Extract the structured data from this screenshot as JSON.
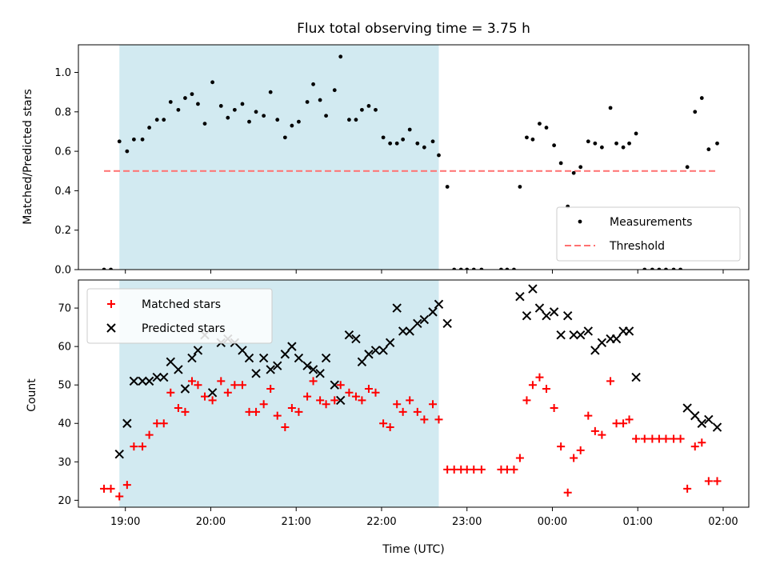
{
  "chart_data": [
    {
      "type": "scatter",
      "title": "Flux total observing time = 3.75 h",
      "xlabel": "",
      "ylabel": "Matched/Predicted stars",
      "ylim": [
        0,
        1.14
      ],
      "yticks": [
        "0.0",
        "0.2",
        "0.4",
        "0.6",
        "0.8",
        "1.0"
      ],
      "ytick_values": [
        0,
        0.2,
        0.4,
        0.6,
        0.8,
        1.0
      ],
      "legend_position": "bottom-right",
      "highlight_span": {
        "start_h": 18.93,
        "end_h": 22.67,
        "color": "#add8e6"
      },
      "threshold": {
        "name": "Threshold",
        "value": 0.5,
        "x_start_h": 18.75,
        "x_end_h": 25.93,
        "color": "#ff7070"
      },
      "series": [
        {
          "name": "Measurements",
          "color": "#000000",
          "marker": "dot",
          "points": [
            [
              18.75,
              0.0
            ],
            [
              18.83,
              0.0
            ],
            [
              18.93,
              0.65
            ],
            [
              19.02,
              0.6
            ],
            [
              19.1,
              0.66
            ],
            [
              19.2,
              0.66
            ],
            [
              19.28,
              0.72
            ],
            [
              19.37,
              0.76
            ],
            [
              19.45,
              0.76
            ],
            [
              19.53,
              0.85
            ],
            [
              19.62,
              0.81
            ],
            [
              19.7,
              0.87
            ],
            [
              19.78,
              0.89
            ],
            [
              19.85,
              0.84
            ],
            [
              19.93,
              0.74
            ],
            [
              20.02,
              0.95
            ],
            [
              20.12,
              0.83
            ],
            [
              20.2,
              0.77
            ],
            [
              20.28,
              0.81
            ],
            [
              20.37,
              0.84
            ],
            [
              20.45,
              0.75
            ],
            [
              20.53,
              0.8
            ],
            [
              20.62,
              0.78
            ],
            [
              20.7,
              0.9
            ],
            [
              20.78,
              0.76
            ],
            [
              20.87,
              0.67
            ],
            [
              20.95,
              0.73
            ],
            [
              21.03,
              0.75
            ],
            [
              21.13,
              0.85
            ],
            [
              21.2,
              0.94
            ],
            [
              21.28,
              0.86
            ],
            [
              21.35,
              0.78
            ],
            [
              21.45,
              0.91
            ],
            [
              21.52,
              1.08
            ],
            [
              21.62,
              0.76
            ],
            [
              21.7,
              0.76
            ],
            [
              21.77,
              0.81
            ],
            [
              21.85,
              0.83
            ],
            [
              21.93,
              0.81
            ],
            [
              22.02,
              0.67
            ],
            [
              22.1,
              0.64
            ],
            [
              22.18,
              0.64
            ],
            [
              22.25,
              0.66
            ],
            [
              22.33,
              0.71
            ],
            [
              22.42,
              0.64
            ],
            [
              22.5,
              0.62
            ],
            [
              22.6,
              0.65
            ],
            [
              22.67,
              0.58
            ],
            [
              22.77,
              0.42
            ],
            [
              22.85,
              0.0
            ],
            [
              22.93,
              0.0
            ],
            [
              23.0,
              0.0
            ],
            [
              23.08,
              0.0
            ],
            [
              23.17,
              0.0
            ],
            [
              23.4,
              0.0
            ],
            [
              23.47,
              0.0
            ],
            [
              23.55,
              0.0
            ],
            [
              23.62,
              0.42
            ],
            [
              23.7,
              0.67
            ],
            [
              23.77,
              0.66
            ],
            [
              23.85,
              0.74
            ],
            [
              23.93,
              0.72
            ],
            [
              24.02,
              0.63
            ],
            [
              24.1,
              0.54
            ],
            [
              24.18,
              0.32
            ],
            [
              24.25,
              0.49
            ],
            [
              24.33,
              0.52
            ],
            [
              24.42,
              0.65
            ],
            [
              24.5,
              0.64
            ],
            [
              24.58,
              0.62
            ],
            [
              24.68,
              0.82
            ],
            [
              24.75,
              0.64
            ],
            [
              24.83,
              0.62
            ],
            [
              24.9,
              0.64
            ],
            [
              24.98,
              0.69
            ],
            [
              25.08,
              0.0
            ],
            [
              25.17,
              0.0
            ],
            [
              25.25,
              0.0
            ],
            [
              25.33,
              0.0
            ],
            [
              25.42,
              0.0
            ],
            [
              25.5,
              0.0
            ],
            [
              25.58,
              0.52
            ],
            [
              25.67,
              0.8
            ],
            [
              25.75,
              0.87
            ],
            [
              25.83,
              0.61
            ],
            [
              25.93,
              0.64
            ]
          ]
        }
      ]
    },
    {
      "type": "scatter",
      "title": "",
      "xlabel": "Time (UTC)",
      "ylabel": "Count",
      "ylim": [
        18.2,
        77.3
      ],
      "yticks": [
        "20",
        "30",
        "40",
        "50",
        "60",
        "70"
      ],
      "ytick_values": [
        20,
        30,
        40,
        50,
        60,
        70
      ],
      "xlim_h": [
        18.45,
        26.3
      ],
      "xticks": [
        "19:00",
        "20:00",
        "21:00",
        "22:00",
        "23:00",
        "00:00",
        "01:00",
        "02:00"
      ],
      "xtick_values_h": [
        19,
        20,
        21,
        22,
        23,
        24,
        25,
        26
      ],
      "legend_position": "top-left",
      "highlight_span": {
        "start_h": 18.93,
        "end_h": 22.67,
        "color": "#add8e6"
      },
      "series": [
        {
          "name": "Matched stars",
          "color": "#ff0000",
          "marker": "plus",
          "points": [
            [
              18.75,
              23
            ],
            [
              18.83,
              23
            ],
            [
              18.93,
              21
            ],
            [
              19.02,
              24
            ],
            [
              19.1,
              34
            ],
            [
              19.2,
              34
            ],
            [
              19.28,
              37
            ],
            [
              19.37,
              40
            ],
            [
              19.45,
              40
            ],
            [
              19.53,
              48
            ],
            [
              19.62,
              44
            ],
            [
              19.7,
              43
            ],
            [
              19.78,
              51
            ],
            [
              19.85,
              50
            ],
            [
              19.93,
              47
            ],
            [
              20.02,
              46
            ],
            [
              20.12,
              51
            ],
            [
              20.2,
              48
            ],
            [
              20.28,
              50
            ],
            [
              20.37,
              50
            ],
            [
              20.45,
              43
            ],
            [
              20.53,
              43
            ],
            [
              20.62,
              45
            ],
            [
              20.7,
              49
            ],
            [
              20.78,
              42
            ],
            [
              20.87,
              39
            ],
            [
              20.95,
              44
            ],
            [
              21.03,
              43
            ],
            [
              21.13,
              47
            ],
            [
              21.2,
              51
            ],
            [
              21.28,
              46
            ],
            [
              21.35,
              45
            ],
            [
              21.45,
              46
            ],
            [
              21.52,
              50
            ],
            [
              21.62,
              48
            ],
            [
              21.7,
              47
            ],
            [
              21.77,
              46
            ],
            [
              21.85,
              49
            ],
            [
              21.93,
              48
            ],
            [
              22.02,
              40
            ],
            [
              22.1,
              39
            ],
            [
              22.18,
              45
            ],
            [
              22.25,
              43
            ],
            [
              22.33,
              46
            ],
            [
              22.42,
              43
            ],
            [
              22.5,
              41
            ],
            [
              22.6,
              45
            ],
            [
              22.67,
              41
            ],
            [
              22.77,
              28
            ],
            [
              22.85,
              28
            ],
            [
              22.93,
              28
            ],
            [
              23.0,
              28
            ],
            [
              23.08,
              28
            ],
            [
              23.17,
              28
            ],
            [
              23.4,
              28
            ],
            [
              23.47,
              28
            ],
            [
              23.55,
              28
            ],
            [
              23.62,
              31
            ],
            [
              23.7,
              46
            ],
            [
              23.77,
              50
            ],
            [
              23.85,
              52
            ],
            [
              23.93,
              49
            ],
            [
              24.02,
              44
            ],
            [
              24.1,
              34
            ],
            [
              24.18,
              22
            ],
            [
              24.25,
              31
            ],
            [
              24.33,
              33
            ],
            [
              24.42,
              42
            ],
            [
              24.5,
              38
            ],
            [
              24.58,
              37
            ],
            [
              24.68,
              51
            ],
            [
              24.75,
              40
            ],
            [
              24.83,
              40
            ],
            [
              24.9,
              41
            ],
            [
              24.98,
              36
            ],
            [
              25.08,
              36
            ],
            [
              25.17,
              36
            ],
            [
              25.25,
              36
            ],
            [
              25.33,
              36
            ],
            [
              25.42,
              36
            ],
            [
              25.5,
              36
            ],
            [
              25.58,
              23
            ],
            [
              25.67,
              34
            ],
            [
              25.75,
              35
            ],
            [
              25.83,
              25
            ],
            [
              25.93,
              25
            ]
          ]
        },
        {
          "name": "Predicted stars",
          "color": "#000000",
          "marker": "x",
          "points": [
            [
              18.93,
              32
            ],
            [
              19.02,
              40
            ],
            [
              19.1,
              51
            ],
            [
              19.2,
              51
            ],
            [
              19.28,
              51
            ],
            [
              19.37,
              52
            ],
            [
              19.45,
              52
            ],
            [
              19.53,
              56
            ],
            [
              19.62,
              54
            ],
            [
              19.7,
              49
            ],
            [
              19.78,
              57
            ],
            [
              19.85,
              59
            ],
            [
              19.93,
              63
            ],
            [
              20.02,
              48
            ],
            [
              20.12,
              61
            ],
            [
              20.2,
              62
            ],
            [
              20.28,
              61
            ],
            [
              20.37,
              59
            ],
            [
              20.45,
              57
            ],
            [
              20.53,
              53
            ],
            [
              20.62,
              57
            ],
            [
              20.7,
              54
            ],
            [
              20.78,
              55
            ],
            [
              20.87,
              58
            ],
            [
              20.95,
              60
            ],
            [
              21.03,
              57
            ],
            [
              21.13,
              55
            ],
            [
              21.2,
              54
            ],
            [
              21.28,
              53
            ],
            [
              21.35,
              57
            ],
            [
              21.45,
              50
            ],
            [
              21.52,
              46
            ],
            [
              21.62,
              63
            ],
            [
              21.7,
              62
            ],
            [
              21.77,
              56
            ],
            [
              21.85,
              58
            ],
            [
              21.93,
              59
            ],
            [
              22.02,
              59
            ],
            [
              22.1,
              61
            ],
            [
              22.18,
              70
            ],
            [
              22.25,
              64
            ],
            [
              22.33,
              64
            ],
            [
              22.42,
              66
            ],
            [
              22.5,
              67
            ],
            [
              22.6,
              69
            ],
            [
              22.67,
              71
            ],
            [
              22.77,
              66
            ],
            [
              23.62,
              73
            ],
            [
              23.7,
              68
            ],
            [
              23.77,
              75
            ],
            [
              23.85,
              70
            ],
            [
              23.93,
              68
            ],
            [
              24.02,
              69
            ],
            [
              24.1,
              63
            ],
            [
              24.18,
              68
            ],
            [
              24.25,
              63
            ],
            [
              24.33,
              63
            ],
            [
              24.42,
              64
            ],
            [
              24.5,
              59
            ],
            [
              24.58,
              61
            ],
            [
              24.68,
              62
            ],
            [
              24.75,
              62
            ],
            [
              24.83,
              64
            ],
            [
              24.9,
              64
            ],
            [
              24.98,
              52
            ],
            [
              25.58,
              44
            ],
            [
              25.67,
              42
            ],
            [
              25.75,
              40
            ],
            [
              25.83,
              41
            ],
            [
              25.93,
              39
            ]
          ]
        }
      ]
    }
  ]
}
